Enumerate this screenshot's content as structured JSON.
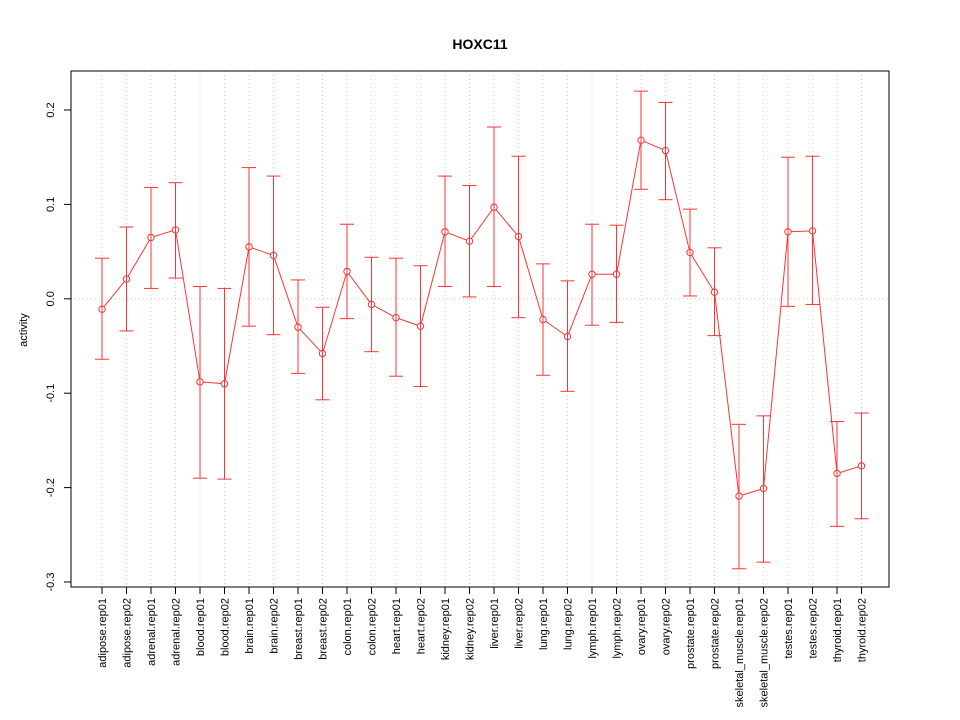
{
  "chart_data": {
    "type": "line",
    "title": "HOXC11",
    "xlabel": "",
    "ylabel": "activity",
    "ylim": [
      -0.3,
      0.22
    ],
    "yticks": [
      -0.3,
      -0.2,
      -0.1,
      0.0,
      0.1,
      0.2
    ],
    "ytick_labels": [
      "-0.3",
      "-0.2",
      "-0.1",
      "0.0",
      "0.1",
      "0.2"
    ],
    "grid": true,
    "color": "#ff3333",
    "categories": [
      "adipose.rep01",
      "adipose.rep02",
      "adrenal.rep01",
      "adrenal.rep02",
      "blood.rep01",
      "blood.rep02",
      "brain.rep01",
      "brain.rep02",
      "breast.rep01",
      "breast.rep02",
      "colon.rep01",
      "colon.rep02",
      "heart.rep01",
      "heart.rep02",
      "kidney.rep01",
      "kidney.rep02",
      "liver.rep01",
      "liver.rep02",
      "lung.rep01",
      "lung.rep02",
      "lymph.rep01",
      "lymph.rep02",
      "ovary.rep01",
      "ovary.rep02",
      "prostate.rep01",
      "prostate.rep02",
      "skeletal_muscle.rep01",
      "skeletal_muscle.rep02",
      "testes.rep01",
      "testes.rep02",
      "thyroid.rep01",
      "thyroid.rep02"
    ],
    "values": [
      -0.011,
      0.021,
      0.065,
      0.073,
      -0.088,
      -0.09,
      0.055,
      0.046,
      -0.03,
      -0.058,
      0.029,
      -0.006,
      -0.02,
      -0.029,
      0.071,
      0.061,
      0.097,
      0.066,
      -0.022,
      -0.04,
      0.026,
      0.026,
      0.168,
      0.157,
      0.049,
      0.007,
      -0.209,
      -0.201,
      0.071,
      0.072,
      -0.185,
      -0.177
    ],
    "lower": [
      -0.064,
      -0.034,
      0.011,
      0.022,
      -0.19,
      -0.191,
      -0.029,
      -0.038,
      -0.079,
      -0.107,
      -0.021,
      -0.056,
      -0.082,
      -0.093,
      0.013,
      0.002,
      0.013,
      -0.02,
      -0.081,
      -0.098,
      -0.028,
      -0.025,
      0.116,
      0.105,
      0.003,
      -0.039,
      -0.286,
      -0.279,
      -0.008,
      -0.006,
      -0.241,
      -0.233
    ],
    "upper": [
      0.043,
      0.076,
      0.118,
      0.123,
      0.013,
      0.011,
      0.139,
      0.13,
      0.02,
      -0.009,
      0.079,
      0.044,
      0.043,
      0.035,
      0.13,
      0.12,
      0.182,
      0.151,
      0.037,
      0.019,
      0.079,
      0.078,
      0.22,
      0.208,
      0.095,
      0.054,
      -0.133,
      -0.124,
      0.15,
      0.151,
      -0.13,
      -0.121
    ]
  }
}
